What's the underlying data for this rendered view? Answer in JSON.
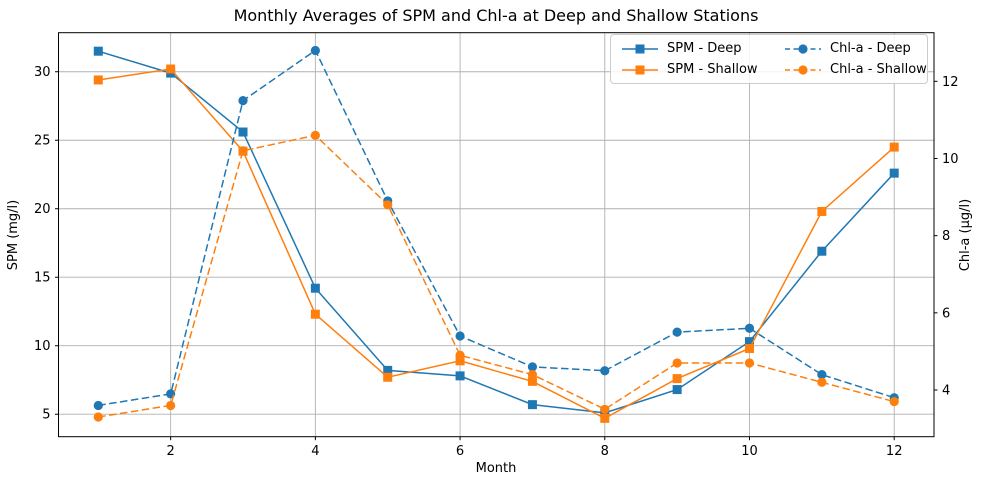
{
  "chart_data": {
    "type": "line",
    "title": "Monthly Averages of SPM and Chl-a at Deep and Shallow Stations",
    "xlabel": "Month",
    "ylabel_left": "SPM (mg/l)",
    "ylabel_right": "Chl-a (µg/l)",
    "x": [
      1,
      2,
      3,
      4,
      5,
      6,
      7,
      8,
      9,
      10,
      11,
      12
    ],
    "xticks": [
      2,
      4,
      6,
      8,
      10,
      12
    ],
    "yticks_left": [
      5,
      10,
      15,
      20,
      25,
      30
    ],
    "yticks_right": [
      4,
      6,
      8,
      10,
      12
    ],
    "xlim": [
      0.45,
      12.55
    ],
    "ylim_left": [
      3.36,
      32.85
    ],
    "ylim_right": [
      2.79,
      13.26
    ],
    "grid": true,
    "legend": {
      "position": "upper right",
      "ncol": 2
    },
    "series": [
      {
        "name": "SPM - Deep",
        "axis": "left",
        "color": "#1f77b4",
        "line": "solid",
        "marker": "square",
        "values": [
          31.5,
          29.9,
          25.6,
          14.2,
          8.2,
          7.8,
          5.7,
          5.1,
          6.8,
          10.3,
          16.9,
          22.6
        ]
      },
      {
        "name": "SPM - Shallow",
        "axis": "left",
        "color": "#ff7f0e",
        "line": "solid",
        "marker": "square",
        "values": [
          29.4,
          30.2,
          24.2,
          12.3,
          7.7,
          8.9,
          7.4,
          4.7,
          7.6,
          9.8,
          19.8,
          24.5
        ]
      },
      {
        "name": "Chl-a - Deep",
        "axis": "right",
        "color": "#1f77b4",
        "line": "dashed",
        "marker": "circle",
        "values": [
          3.6,
          3.9,
          11.5,
          12.8,
          8.9,
          5.4,
          4.6,
          4.5,
          5.5,
          5.6,
          4.4,
          3.8
        ]
      },
      {
        "name": "Chl-a - Shallow",
        "axis": "right",
        "color": "#ff7f0e",
        "line": "dashed",
        "marker": "circle",
        "values": [
          3.3,
          3.6,
          10.2,
          10.6,
          8.8,
          4.9,
          4.4,
          3.5,
          4.7,
          4.7,
          4.2,
          3.7
        ]
      }
    ],
    "colors": {
      "grid": "#b0b0b0",
      "axes": "#000000",
      "background": "#ffffff"
    }
  }
}
